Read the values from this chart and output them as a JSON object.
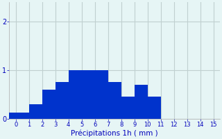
{
  "categories": [
    -0.5,
    0.5,
    1.5,
    2.5,
    3.5,
    4.5,
    5.5,
    6.5,
    7.5,
    8.5,
    9.5,
    10.5
  ],
  "values": [
    0.13,
    0.13,
    0.3,
    0.6,
    0.75,
    1.0,
    1.0,
    1.0,
    0.75,
    0.45,
    0.7,
    0.45
  ],
  "bar_color": "#0033cc",
  "background_color": "#e6f5f5",
  "grid_color": "#c0d0d0",
  "xlabel": "Précipitations 1h ( mm )",
  "xlabel_color": "#0000bb",
  "tick_color": "#0000bb",
  "axis_color": "#aaaaaa",
  "ylim": [
    0,
    2.4
  ],
  "xlim": [
    -0.5,
    15.5
  ],
  "yticks": [
    0,
    1,
    2
  ],
  "xtick_positions": [
    0,
    1,
    2,
    3,
    4,
    5,
    6,
    7,
    8,
    9,
    10,
    11,
    12,
    13,
    14,
    15
  ],
  "xtick_labels": [
    "0",
    "1",
    "2",
    "3",
    "4",
    "5",
    "6",
    "7",
    "8",
    "9",
    "10",
    "11",
    "12",
    "13",
    "14",
    "15"
  ],
  "bar_width": 1.0,
  "figsize": [
    3.2,
    2.0
  ],
  "dpi": 100
}
